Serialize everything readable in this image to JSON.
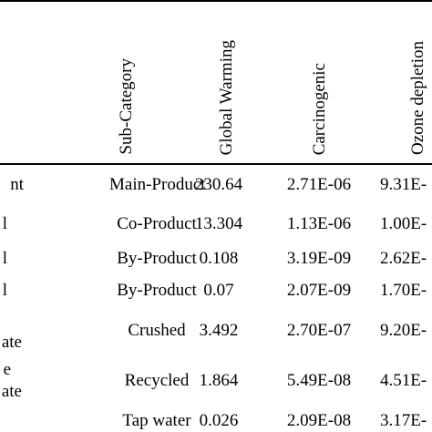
{
  "table": {
    "headers": {
      "sub_category": "Sub-Category",
      "global_warming": "Global Warming",
      "carcinogenic": "Carcinogenic",
      "ozone_depletion": "Ozone depletion"
    },
    "rows": [
      {
        "left": "nt",
        "sub_category": "Main-Product",
        "global_warming": "230.64",
        "carcinogenic": "2.71E-06",
        "ozone_depletion": "9.31E-"
      },
      {
        "left": "l",
        "sub_category": "Co-Product",
        "global_warming": "13.304",
        "carcinogenic": "1.13E-06",
        "ozone_depletion": "1.00E-"
      },
      {
        "left": "l",
        "sub_category": "By-Product",
        "global_warming": "0.108",
        "carcinogenic": "3.19E-09",
        "ozone_depletion": "2.62E-"
      },
      {
        "left": "l",
        "sub_category": "By-Product",
        "global_warming": "0.07",
        "carcinogenic": "2.07E-09",
        "ozone_depletion": "1.70E-"
      },
      {
        "left": "ate",
        "sub_category": "Crushed",
        "global_warming": "3.492",
        "carcinogenic": "2.70E-07",
        "ozone_depletion": "9.20E-"
      },
      {
        "left_top": "e",
        "left": "ate",
        "sub_category": "Recycled",
        "global_warming": "1.864",
        "carcinogenic": "5.49E-08",
        "ozone_depletion": "4.51E-"
      },
      {
        "left": "",
        "sub_category": "Tap water",
        "global_warming": "0.026",
        "carcinogenic": "2.09E-08",
        "ozone_depletion": "3.17E-"
      }
    ]
  }
}
